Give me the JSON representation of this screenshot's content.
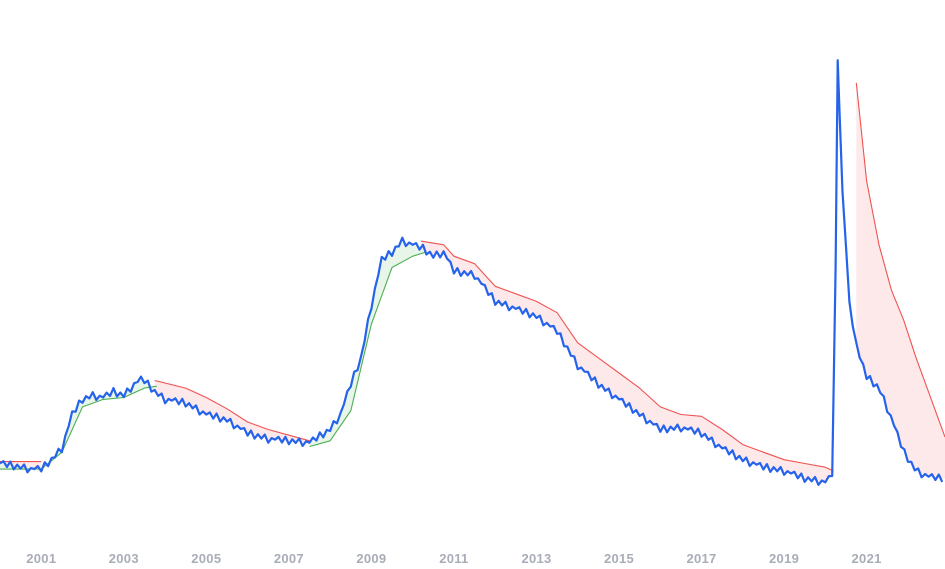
{
  "chart_data": {
    "type": "line",
    "title": "",
    "xlabel": "",
    "ylabel": "",
    "xlim": [
      2000.0,
      2022.9
    ],
    "ylim": [
      2.5,
      15.5
    ],
    "x_ticks": [
      "2001",
      "2003",
      "2005",
      "2007",
      "2009",
      "2011",
      "2013",
      "2015",
      "2017",
      "2019",
      "2021"
    ],
    "grid": false,
    "legend": "none",
    "colors": {
      "main": "#2563eb",
      "trend_up": "#4caf50",
      "trend_down": "#ef5350",
      "fill_up": "#e8f5e9",
      "fill_down": "#fde8ea",
      "tick_text": "#a8adb8"
    },
    "series": [
      {
        "role": "main",
        "x": [
          2000.0,
          2000.25,
          2000.5,
          2000.75,
          2001.0,
          2001.25,
          2001.5,
          2001.75,
          2002.0,
          2002.25,
          2002.5,
          2002.75,
          2003.0,
          2003.25,
          2003.45,
          2003.75,
          2004.0,
          2004.5,
          2005.0,
          2005.5,
          2006.0,
          2006.5,
          2007.0,
          2007.5,
          2008.0,
          2008.25,
          2008.5,
          2008.75,
          2009.0,
          2009.25,
          2009.5,
          2009.75,
          2010.0,
          2010.25,
          2010.5,
          2010.75,
          2011.0,
          2011.5,
          2012.0,
          2012.5,
          2013.0,
          2013.5,
          2014.0,
          2014.5,
          2015.0,
          2015.5,
          2016.0,
          2016.5,
          2017.0,
          2017.5,
          2018.0,
          2018.5,
          2019.0,
          2019.5,
          2020.0,
          2020.2,
          2020.3,
          2020.4,
          2020.6,
          2020.8,
          2021.0,
          2021.3,
          2021.6,
          2021.9,
          2022.2,
          2022.5,
          2022.8,
          2022.9
        ],
        "y": [
          4.0,
          3.95,
          3.9,
          3.85,
          3.85,
          4.1,
          4.4,
          5.3,
          5.7,
          5.8,
          5.75,
          5.9,
          5.8,
          6.1,
          6.25,
          5.9,
          5.7,
          5.6,
          5.3,
          5.15,
          4.8,
          4.65,
          4.6,
          4.55,
          4.9,
          5.3,
          6.1,
          6.8,
          8.2,
          9.4,
          9.6,
          9.9,
          9.8,
          9.7,
          9.5,
          9.6,
          9.1,
          9.0,
          8.3,
          8.1,
          7.9,
          7.5,
          6.6,
          6.1,
          5.7,
          5.3,
          4.9,
          4.95,
          4.8,
          4.4,
          4.1,
          3.9,
          3.8,
          3.6,
          3.5,
          3.7,
          14.7,
          11.5,
          8.0,
          6.9,
          6.3,
          6.0,
          5.2,
          4.3,
          3.8,
          3.65,
          3.6,
          3.6
        ]
      },
      {
        "role": "trend_up",
        "segments": [
          {
            "x": [
              2000.0,
              2001.0,
              2001.5,
              2002.0,
              2002.5,
              2003.0,
              2003.5,
              2003.8
            ],
            "y": [
              3.85,
              3.85,
              4.3,
              5.5,
              5.7,
              5.75,
              6.0,
              6.05
            ]
          },
          {
            "x": [
              2007.5,
              2008.0,
              2008.5,
              2009.0,
              2009.5,
              2010.0,
              2010.3
            ],
            "y": [
              4.45,
              4.6,
              5.4,
              7.7,
              9.2,
              9.5,
              9.6
            ]
          }
        ]
      },
      {
        "role": "trend_down",
        "segments": [
          {
            "x": [
              2000.0,
              2001.0
            ],
            "y": [
              4.05,
              4.05
            ]
          },
          {
            "x": [
              2003.75,
              2004.5,
              2005.0,
              2005.5,
              2006.0,
              2006.5,
              2007.0,
              2007.5
            ],
            "y": [
              6.2,
              6.0,
              5.75,
              5.45,
              5.1,
              4.9,
              4.75,
              4.6
            ]
          },
          {
            "x": [
              2010.2,
              2010.75,
              2011.0,
              2011.5,
              2012.0,
              2012.5,
              2013.0,
              2013.5,
              2014.0,
              2014.5,
              2015.0,
              2015.5,
              2016.0,
              2016.5,
              2017.0,
              2017.5,
              2018.0,
              2018.5,
              2019.0,
              2019.5,
              2020.0,
              2020.2
            ],
            "y": [
              9.9,
              9.8,
              9.5,
              9.3,
              8.7,
              8.5,
              8.3,
              8.0,
              7.2,
              6.8,
              6.4,
              6.0,
              5.5,
              5.3,
              5.25,
              4.9,
              4.5,
              4.3,
              4.1,
              4.0,
              3.9,
              3.8
            ]
          },
          {
            "x": [
              2020.75,
              2021.0,
              2021.3,
              2021.6,
              2021.9,
              2022.2,
              2022.5,
              2022.8,
              2022.9
            ],
            "y": [
              14.1,
              11.5,
              9.8,
              8.6,
              7.8,
              6.8,
              5.9,
              5.0,
              4.7
            ]
          }
        ]
      }
    ]
  }
}
